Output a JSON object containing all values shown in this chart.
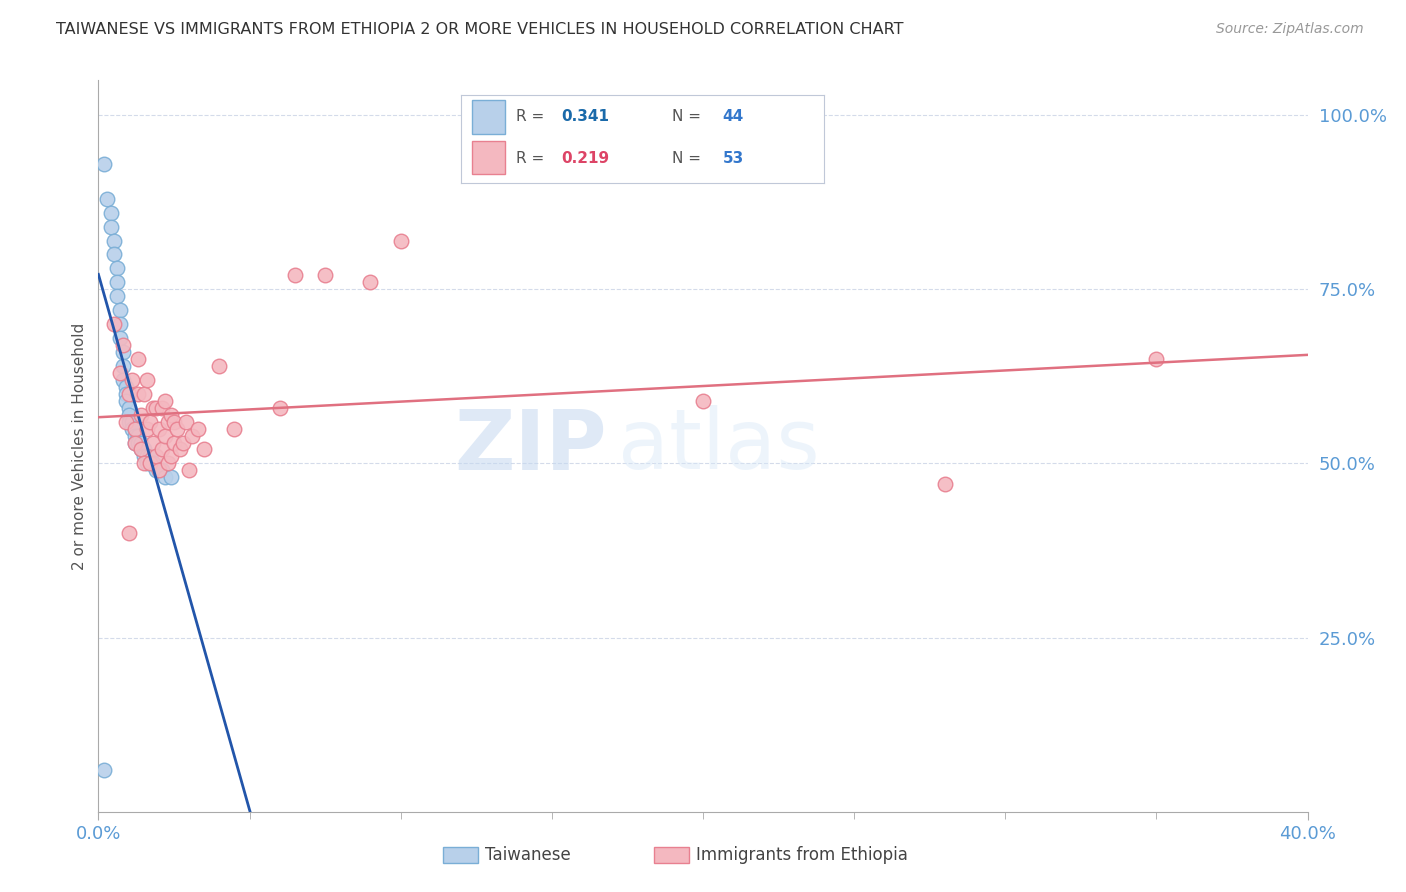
{
  "title": "TAIWANESE VS IMMIGRANTS FROM ETHIOPIA 2 OR MORE VEHICLES IN HOUSEHOLD CORRELATION CHART",
  "source": "Source: ZipAtlas.com",
  "ylabel": "2 or more Vehicles in Household",
  "ytick_labels": [
    "100.0%",
    "75.0%",
    "50.0%",
    "25.0%"
  ],
  "ytick_values": [
    1.0,
    0.75,
    0.5,
    0.25
  ],
  "xlim": [
    0.0,
    0.4
  ],
  "ylim": [
    0.0,
    1.05
  ],
  "background_color": "#ffffff",
  "grid_color": "#d0d8e8",
  "title_color": "#333333",
  "axis_color": "#5b9bd5",
  "watermark_text": "ZIP",
  "watermark_text2": "atlas",
  "series": [
    {
      "name": "Taiwanese",
      "R": 0.341,
      "N": 44,
      "dot_fill": "#b8d0ea",
      "dot_edge": "#7aaed6",
      "line_color": "#2255aa",
      "line_dash": "solid",
      "x": [
        0.002,
        0.003,
        0.004,
        0.004,
        0.005,
        0.005,
        0.006,
        0.006,
        0.006,
        0.007,
        0.007,
        0.007,
        0.008,
        0.008,
        0.008,
        0.009,
        0.009,
        0.009,
        0.01,
        0.01,
        0.01,
        0.011,
        0.011,
        0.012,
        0.012,
        0.012,
        0.013,
        0.013,
        0.014,
        0.014,
        0.015,
        0.015,
        0.016,
        0.016,
        0.017,
        0.017,
        0.018,
        0.018,
        0.019,
        0.02,
        0.021,
        0.022,
        0.024,
        0.002
      ],
      "y": [
        0.93,
        0.88,
        0.86,
        0.84,
        0.82,
        0.8,
        0.78,
        0.76,
        0.74,
        0.72,
        0.7,
        0.68,
        0.66,
        0.64,
        0.62,
        0.61,
        0.6,
        0.59,
        0.58,
        0.57,
        0.56,
        0.56,
        0.55,
        0.55,
        0.54,
        0.53,
        0.54,
        0.53,
        0.53,
        0.52,
        0.52,
        0.51,
        0.51,
        0.5,
        0.51,
        0.5,
        0.5,
        0.5,
        0.49,
        0.49,
        0.49,
        0.48,
        0.48,
        0.06
      ]
    },
    {
      "name": "Immigrants from Ethiopia",
      "R": 0.219,
      "N": 53,
      "dot_fill": "#f4b8c0",
      "dot_edge": "#e88090",
      "line_color": "#e07080",
      "line_dash": "solid",
      "x": [
        0.005,
        0.007,
        0.008,
        0.009,
        0.01,
        0.011,
        0.012,
        0.012,
        0.013,
        0.013,
        0.014,
        0.014,
        0.015,
        0.015,
        0.016,
        0.016,
        0.017,
        0.017,
        0.018,
        0.018,
        0.019,
        0.019,
        0.02,
        0.02,
        0.021,
        0.021,
        0.022,
        0.022,
        0.023,
        0.023,
        0.024,
        0.024,
        0.025,
        0.025,
        0.026,
        0.027,
        0.028,
        0.029,
        0.03,
        0.031,
        0.033,
        0.035,
        0.04,
        0.045,
        0.06,
        0.065,
        0.075,
        0.09,
        0.1,
        0.2,
        0.28,
        0.35,
        0.01
      ],
      "y": [
        0.7,
        0.63,
        0.67,
        0.56,
        0.6,
        0.62,
        0.55,
        0.53,
        0.6,
        0.65,
        0.57,
        0.52,
        0.6,
        0.5,
        0.62,
        0.55,
        0.56,
        0.5,
        0.58,
        0.53,
        0.58,
        0.51,
        0.55,
        0.49,
        0.58,
        0.52,
        0.59,
        0.54,
        0.56,
        0.5,
        0.57,
        0.51,
        0.56,
        0.53,
        0.55,
        0.52,
        0.53,
        0.56,
        0.49,
        0.54,
        0.55,
        0.52,
        0.64,
        0.55,
        0.58,
        0.77,
        0.77,
        0.76,
        0.82,
        0.59,
        0.47,
        0.65,
        0.4
      ]
    }
  ],
  "legend_R_color_0": "#1a6aaa",
  "legend_N_color": "#3377cc",
  "legend_R_color_1": "#dd4466",
  "bottom_legend_labels": [
    "Taiwanese",
    "Immigrants from Ethiopia"
  ]
}
